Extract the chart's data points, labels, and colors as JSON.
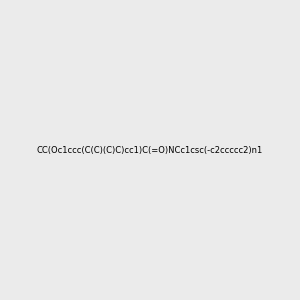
{
  "smiles": "CC(Oc1ccc(C(C)(C)C)cc1)C(=O)NCc1csc(-c2ccccc2)n1",
  "image_size": 300,
  "background_color": "#ebebeb",
  "bond_color": "#000000",
  "title": "",
  "figsize": [
    3.0,
    3.0
  ],
  "dpi": 100,
  "atom_colors": {
    "N": "#0000ff",
    "O": "#ff0000",
    "S": "#cccc00",
    "H_on_N": "#008080"
  }
}
